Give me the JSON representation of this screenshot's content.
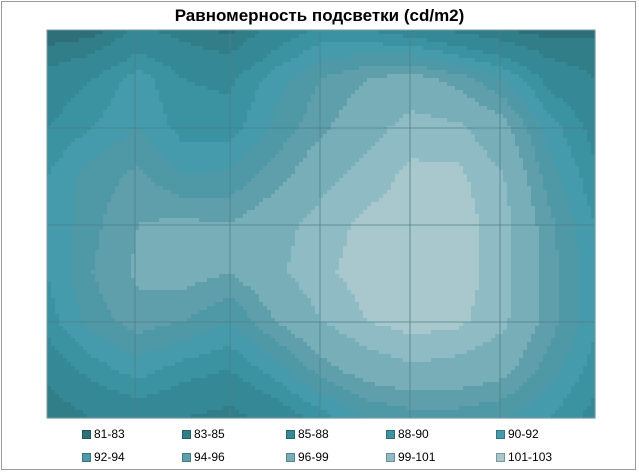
{
  "chart_data": {
    "type": "heatmap",
    "title": "Равномерность подсветки (cd/m2)",
    "grid": true,
    "legend_position": "bottom",
    "levels": [
      {
        "label": "81-83",
        "min": 81,
        "max": 83,
        "color": "#2e6f7a"
      },
      {
        "label": "83-85",
        "min": 83,
        "max": 85,
        "color": "#317d88"
      },
      {
        "label": "85-88",
        "min": 85,
        "max": 88,
        "color": "#358895"
      },
      {
        "label": "88-90",
        "min": 88,
        "max": 90,
        "color": "#3b92a0"
      },
      {
        "label": "90-92",
        "min": 90,
        "max": 92,
        "color": "#459bab"
      },
      {
        "label": "92-94",
        "min": 92,
        "max": 94,
        "color": "#4f99a6"
      },
      {
        "label": "94-96",
        "min": 94,
        "max": 96,
        "color": "#5f9fab"
      },
      {
        "label": "96-99",
        "min": 96,
        "max": 99,
        "color": "#78aeb8"
      },
      {
        "label": "99-101",
        "min": 99,
        "max": 101,
        "color": "#8fbcc4"
      },
      {
        "label": "101-103",
        "min": 101,
        "max": 103,
        "color": "#a8c8cd"
      }
    ],
    "values": [
      [
        81.5,
        82.0,
        85.5,
        84.0,
        82.5,
        86.0,
        88.5,
        88.0,
        86.5,
        84.5,
        83.0,
        82.0,
        82.5
      ],
      [
        86.0,
        88.0,
        91.0,
        88.0,
        87.5,
        91.0,
        94.0,
        96.0,
        97.0,
        95.0,
        92.0,
        87.0,
        85.0
      ],
      [
        88.0,
        90.0,
        92.0,
        89.0,
        89.0,
        92.5,
        95.5,
        98.0,
        100.0,
        99.5,
        97.0,
        91.0,
        87.0
      ],
      [
        90.0,
        93.0,
        94.5,
        92.0,
        92.5,
        95.0,
        98.0,
        100.0,
        101.5,
        101.5,
        99.0,
        93.0,
        88.5
      ],
      [
        90.0,
        93.5,
        96.0,
        96.5,
        96.0,
        98.0,
        100.0,
        101.5,
        102.0,
        102.0,
        100.0,
        94.5,
        90.0
      ],
      [
        90.0,
        94.0,
        96.5,
        97.0,
        96.0,
        98.5,
        100.5,
        102.0,
        102.5,
        102.0,
        100.0,
        95.0,
        90.5
      ],
      [
        89.0,
        93.0,
        95.0,
        94.0,
        92.0,
        96.0,
        99.0,
        101.0,
        102.0,
        101.5,
        99.5,
        95.0,
        90.5
      ],
      [
        86.0,
        89.0,
        91.0,
        89.0,
        88.0,
        91.0,
        95.0,
        97.5,
        98.5,
        98.0,
        97.0,
        93.0,
        89.0
      ],
      [
        83.0,
        85.0,
        86.0,
        85.0,
        84.0,
        86.0,
        89.0,
        92.0,
        93.0,
        93.0,
        92.0,
        90.0,
        87.0
      ]
    ]
  }
}
